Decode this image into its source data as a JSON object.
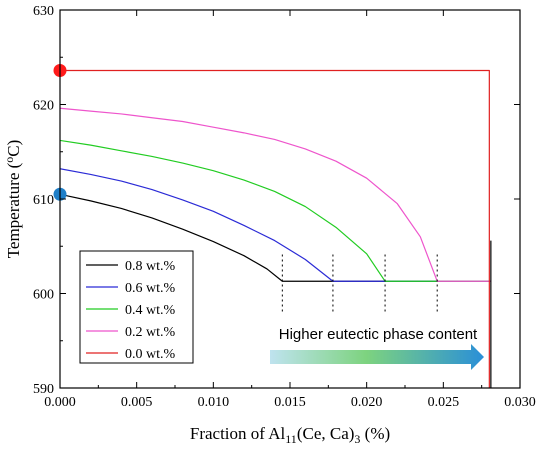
{
  "chart_data": {
    "type": "line",
    "xlabel_parts": [
      "Fraction of Al",
      "11",
      "(Ce, Ca)",
      "3",
      " (%)"
    ],
    "ylabel_parts": [
      "Temperature (",
      "o",
      "C)"
    ],
    "xlim": [
      0.0,
      0.03
    ],
    "ylim": [
      590,
      630
    ],
    "x_ticks": [
      0.0,
      0.005,
      0.01,
      0.015,
      0.02,
      0.025,
      0.03
    ],
    "x_tick_labels": [
      "0.000",
      "0.005",
      "0.010",
      "0.015",
      "0.020",
      "0.025",
      "0.030"
    ],
    "y_ticks": [
      590,
      600,
      610,
      620,
      630
    ],
    "y_tick_labels": [
      "590",
      "600",
      "610",
      "620",
      "630"
    ],
    "legend_position": "bottom-left",
    "series": [
      {
        "name": "0.8 wt.%",
        "color": "#000000",
        "x": [
          0.0,
          0.002,
          0.004,
          0.006,
          0.008,
          0.01,
          0.012,
          0.0135,
          0.0145,
          0.0145,
          0.016,
          0.018,
          0.02,
          0.022,
          0.024,
          0.026,
          0.0281
        ],
        "y": [
          610.5,
          609.8,
          609.0,
          608.0,
          606.8,
          605.5,
          604.0,
          602.6,
          601.3,
          601.3,
          601.3,
          601.3,
          601.3,
          601.3,
          601.3,
          601.3,
          601.3
        ]
      },
      {
        "name": "0.6 wt.%",
        "color": "#2b2bd6",
        "x": [
          0.0,
          0.002,
          0.004,
          0.006,
          0.008,
          0.01,
          0.012,
          0.014,
          0.016,
          0.0178,
          0.02,
          0.022,
          0.024,
          0.026,
          0.0281
        ],
        "y": [
          613.2,
          612.6,
          611.9,
          611.0,
          609.9,
          608.7,
          607.2,
          605.6,
          603.6,
          601.3,
          601.3,
          601.3,
          601.3,
          601.3,
          601.3
        ]
      },
      {
        "name": "0.4 wt.%",
        "color": "#22cc22",
        "x": [
          0.0,
          0.002,
          0.004,
          0.006,
          0.008,
          0.01,
          0.012,
          0.014,
          0.016,
          0.018,
          0.02,
          0.0212,
          0.023,
          0.025,
          0.0281
        ],
        "y": [
          616.2,
          615.7,
          615.1,
          614.5,
          613.8,
          613.0,
          612.0,
          610.8,
          609.2,
          607.0,
          604.2,
          601.3,
          601.3,
          601.3,
          601.3
        ]
      },
      {
        "name": "0.2 wt.%",
        "color": "#ee55cc",
        "x": [
          0.0,
          0.002,
          0.004,
          0.006,
          0.008,
          0.01,
          0.012,
          0.014,
          0.016,
          0.018,
          0.02,
          0.022,
          0.0235,
          0.0246,
          0.026,
          0.0281
        ],
        "y": [
          619.6,
          619.3,
          619.0,
          618.6,
          618.2,
          617.6,
          617.0,
          616.3,
          615.3,
          614.0,
          612.2,
          609.5,
          606.0,
          601.3,
          601.3,
          601.3
        ]
      },
      {
        "name": "0.0 wt.%",
        "color": "#e02020",
        "x": [
          0.0,
          0.028,
          0.028
        ],
        "y": [
          623.6,
          623.6,
          590
        ]
      }
    ],
    "vertical_line_black": {
      "x": 0.0281,
      "y": [
        590,
        605.6
      ]
    },
    "dotted_markers_x": [
      0.0145,
      0.0178,
      0.0212,
      0.0246
    ],
    "dotted_markers_y": [
      598.1,
      604.4
    ],
    "dots": [
      {
        "x": 0.0,
        "y": 623.6,
        "color": "#ff1a1a"
      },
      {
        "x": 0.0,
        "y": 610.5,
        "color": "#1f7fc8"
      }
    ],
    "annotation": {
      "text": "Higher eutectic phase content",
      "arrow_colors": [
        "#bfe3ef",
        "#7dd37f",
        "#2a8fd8"
      ]
    }
  }
}
